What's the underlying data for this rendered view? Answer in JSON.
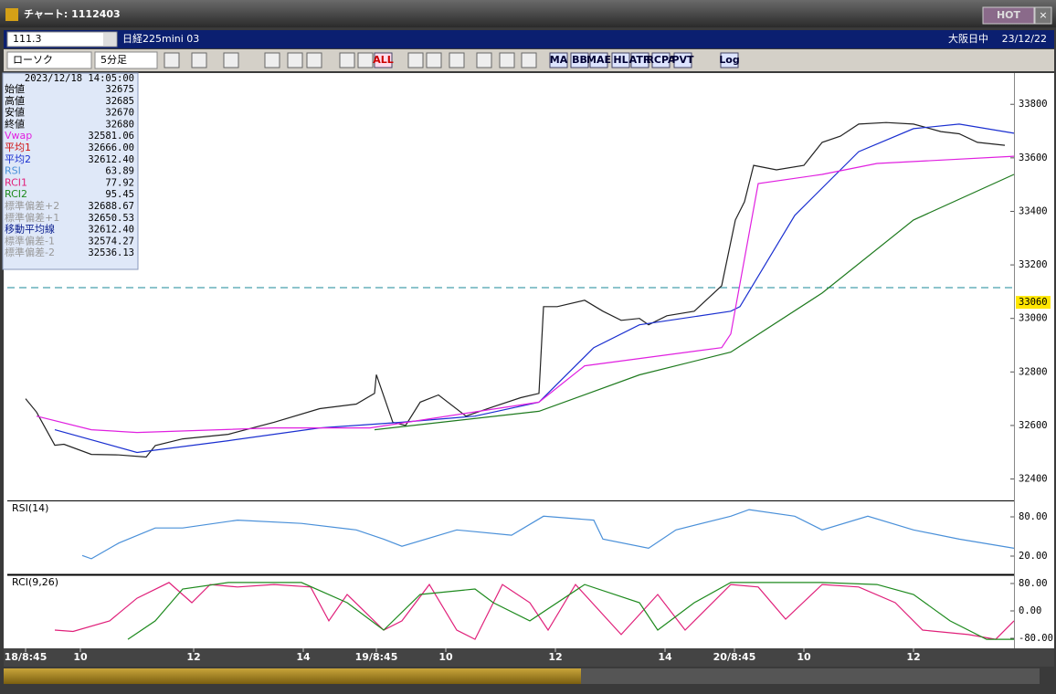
{
  "window": {
    "title": "チャート: 1112403",
    "hot_button": "HOT",
    "close_button": "×"
  },
  "header": {
    "code": "111.3",
    "instrument": "日経225mini 03",
    "session": "大阪日中",
    "date": "23/12/22"
  },
  "toolbar": {
    "chart_style": "ローソク",
    "interval": "5分足",
    "buttons": [
      "ALL",
      "MA",
      "BB",
      "MAE",
      "HL",
      "ATR",
      "RCPA",
      "PVT",
      "Log"
    ]
  },
  "info_panel": {
    "datetime": "2023/12/18 14:05:00",
    "rows": [
      {
        "label": "始値",
        "value": "32675",
        "color": "#000000"
      },
      {
        "label": "高値",
        "value": "32685",
        "color": "#000000"
      },
      {
        "label": "安値",
        "value": "32670",
        "color": "#000000"
      },
      {
        "label": "終値",
        "value": "32680",
        "color": "#000000"
      },
      {
        "label": "Vwap",
        "value": "32581.06",
        "color": "#e020e0"
      },
      {
        "label": "平均1",
        "value": "32666.00",
        "color": "#d01010"
      },
      {
        "label": "平均2",
        "value": "32612.40",
        "color": "#1a2fd0"
      },
      {
        "label": "RSI",
        "value": "63.89",
        "color": "#4a90d9"
      },
      {
        "label": "RCI1",
        "value": "77.92",
        "color": "#e0207a"
      },
      {
        "label": "RCI2",
        "value": "95.45",
        "color": "#1e8a1e"
      },
      {
        "label": "標準偏差+2",
        "value": "32688.67",
        "color": "#999999"
      },
      {
        "label": "標準偏差+1",
        "value": "32650.53",
        "color": "#999999"
      },
      {
        "label": "移動平均線",
        "value": "32612.40",
        "color": "#0a1e8e"
      },
      {
        "label": "標準偏差-1",
        "value": "32574.27",
        "color": "#999999"
      },
      {
        "label": "標準偏差-2",
        "value": "32536.13",
        "color": "#999999"
      }
    ]
  },
  "chart_data": [
    {
      "type": "line",
      "xlim": [
        -5,
        270.5
      ],
      "ylim": [
        32320,
        33910
      ],
      "yticks": [
        32400,
        32600,
        32800,
        33000,
        33200,
        33400,
        33600,
        33800
      ],
      "xticks": [
        {
          "value": 0,
          "label": "18/8:45"
        },
        {
          "value": 15,
          "label": "10"
        },
        {
          "value": 46,
          "label": "12"
        },
        {
          "value": 76,
          "label": "14"
        },
        {
          "value": 96,
          "label": "19/8:45"
        },
        {
          "value": 115,
          "label": "10"
        },
        {
          "value": 145,
          "label": "12"
        },
        {
          "value": 175,
          "label": "14"
        },
        {
          "value": 194,
          "label": "20/8:45"
        },
        {
          "value": 213,
          "label": "10"
        },
        {
          "value": 243,
          "label": "12"
        }
      ],
      "hline": 33115,
      "last_price": 33060,
      "series": [
        {
          "color": "#222222",
          "x": [
            0,
            3,
            8,
            10.5,
            18,
            25.5,
            33,
            35.5,
            43,
            55.5,
            68,
            80.5,
            90.5,
            95.5,
            96,
            100.5,
            104,
            108,
            113,
            120.5,
            128,
            135.5,
            140.5,
            141.75,
            145.5,
            153,
            158,
            163,
            168,
            170.5,
            175.5,
            183,
            190.5,
            194.25,
            196.75,
            199.25,
            205.5,
            213,
            218,
            223,
            228,
            235.5,
            243,
            250.5,
            255.5,
            260.5,
            268
          ],
          "values": [
            32700,
            32650,
            32526,
            32530,
            32492,
            32490,
            32482,
            32525,
            32550,
            32567,
            32612,
            32663,
            32680,
            32720,
            32790,
            32612,
            32600,
            32687,
            32714,
            32635,
            32670,
            32704,
            32720,
            33044,
            33044,
            33068,
            33027,
            32993,
            33000,
            32976,
            33010,
            33027,
            33122,
            33368,
            33436,
            33572,
            33555,
            33572,
            33658,
            33681,
            33726,
            33732,
            33726,
            33698,
            33690,
            33658,
            33647
          ]
        },
        {
          "color": "#1a2fd0",
          "x": [
            8,
            30.5,
            55.5,
            80.5,
            103,
            123,
            140.5,
            155.5,
            168,
            193,
            195.5,
            210.5,
            228,
            243,
            255.5,
            270.5
          ],
          "values": [
            32584,
            32499,
            32543,
            32591,
            32612,
            32635,
            32687,
            32891,
            32976,
            33027,
            33044,
            33385,
            33623,
            33709,
            33726,
            33692
          ]
        },
        {
          "color": "#e020e0",
          "x": [
            3,
            18,
            30.5,
            68,
            94.25,
            140.5,
            153,
            190.5,
            193,
            200.5,
            218,
            233,
            270.5
          ],
          "values": [
            32635,
            32584,
            32574,
            32591,
            32591,
            32687,
            32823,
            32891,
            32942,
            33504,
            33538,
            33579,
            33606
          ]
        },
        {
          "color": "#1e7a1e",
          "x": [
            95.5,
            140.5,
            168,
            193,
            218,
            243,
            270.5
          ],
          "values": [
            32584,
            32653,
            32789,
            32874,
            33095,
            33368,
            33538
          ]
        }
      ]
    },
    {
      "type": "line",
      "title": "RSI(14)",
      "xlim": [
        -5,
        270.5
      ],
      "ylim": [
        -6.5,
        103.7
      ],
      "yticks": [
        {
          "value": 20,
          "label": "20.00"
        },
        {
          "value": 80,
          "label": "80.00"
        }
      ],
      "series": [
        {
          "color": "#4a90d9",
          "x": [
            15.5,
            18,
            25.5,
            35.5,
            43,
            58,
            75.5,
            90.5,
            98,
            103,
            118,
            133,
            141.75,
            155.5,
            158,
            170.5,
            178,
            193,
            198,
            210.5,
            218,
            230.5,
            243,
            255.5,
            270.5
          ],
          "values": [
            21,
            16,
            40,
            63,
            63,
            75,
            70,
            60,
            46,
            35,
            60,
            52,
            81,
            75,
            46,
            32,
            60,
            81,
            91,
            81,
            60,
            81,
            60,
            46,
            32
          ]
        }
      ]
    },
    {
      "type": "line",
      "title": "RCI(9,26)",
      "xlim": [
        -5,
        270.5
      ],
      "ylim": [
        -109.3,
        104
      ],
      "yticks": [
        {
          "value": -80,
          "label": "-80.00"
        },
        {
          "value": 0,
          "label": "0.00"
        },
        {
          "value": 80,
          "label": "80.00"
        }
      ],
      "series": [
        {
          "color": "#e0207a",
          "x": [
            8,
            13,
            23,
            30.5,
            39.25,
            45.5,
            50.5,
            58,
            68,
            78,
            83,
            88,
            98,
            103,
            110.5,
            118,
            123,
            130.5,
            138,
            143,
            150.5,
            163,
            173,
            180.5,
            193,
            200.5,
            208,
            218,
            228,
            238,
            245.5,
            258,
            265.5,
            270.5
          ],
          "values": [
            -56,
            -60,
            -29,
            37,
            83,
            24,
            77,
            70,
            77,
            70,
            -29,
            48,
            -56,
            -29,
            77,
            -56,
            -83,
            77,
            24,
            -56,
            77,
            -69,
            48,
            -56,
            77,
            70,
            -24,
            77,
            70,
            24,
            -56,
            -69,
            -83,
            -29
          ]
        },
        {
          "color": "#1e8a1e",
          "x": [
            28,
            35.5,
            43,
            55.5,
            75.5,
            88,
            98,
            108,
            123,
            128,
            138,
            153,
            168,
            173,
            183,
            193,
            218,
            233,
            243,
            253,
            263,
            270.5
          ],
          "values": [
            -83,
            -29,
            64,
            83,
            83,
            24,
            -56,
            48,
            64,
            24,
            -29,
            77,
            24,
            -56,
            24,
            83,
            83,
            77,
            48,
            -29,
            -83,
            -83
          ]
        }
      ]
    }
  ]
}
